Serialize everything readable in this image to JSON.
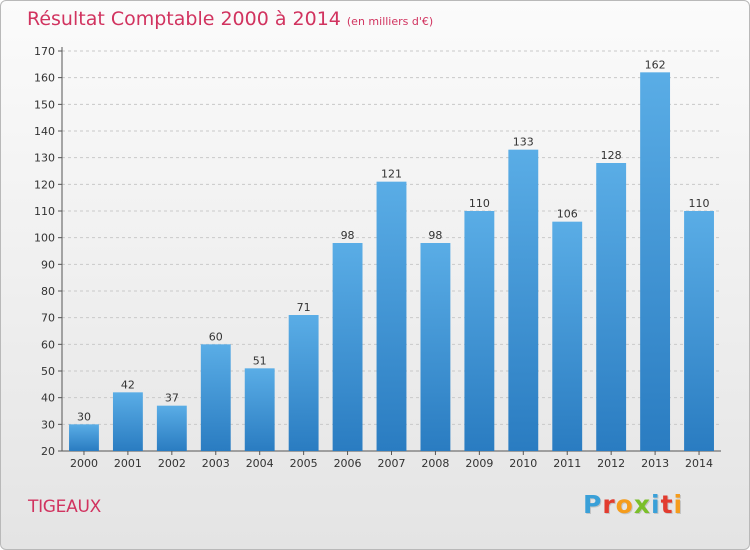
{
  "header": {
    "title": "Résultat Comptable 2000 à 2014",
    "subtitle": "(en milliers d'€)"
  },
  "footer": {
    "commune": "TIGEAUX",
    "logo_text": "Proxiti",
    "logo_colors": [
      "#3aa0d8",
      "#e23c2f",
      "#f59c1c",
      "#7bbf2a",
      "#3aa0d8",
      "#e23c2f",
      "#f59c1c"
    ]
  },
  "chart_data": {
    "type": "bar",
    "title": "Résultat Comptable 2000 à 2014",
    "subtitle": "(en milliers d'€)",
    "categories": [
      "2000",
      "2001",
      "2002",
      "2003",
      "2004",
      "2005",
      "2006",
      "2007",
      "2008",
      "2009",
      "2010",
      "2011",
      "2012",
      "2013",
      "2014"
    ],
    "values": [
      30,
      42,
      37,
      60,
      51,
      71,
      98,
      121,
      98,
      110,
      133,
      106,
      128,
      162,
      110
    ],
    "ylim": [
      20,
      170
    ],
    "yticks": [
      20,
      30,
      40,
      50,
      60,
      70,
      80,
      90,
      100,
      110,
      120,
      130,
      140,
      150,
      160,
      170
    ],
    "grid": true,
    "bar_color_top": "#5aade6",
    "bar_color_bottom": "#2a7cc1"
  }
}
